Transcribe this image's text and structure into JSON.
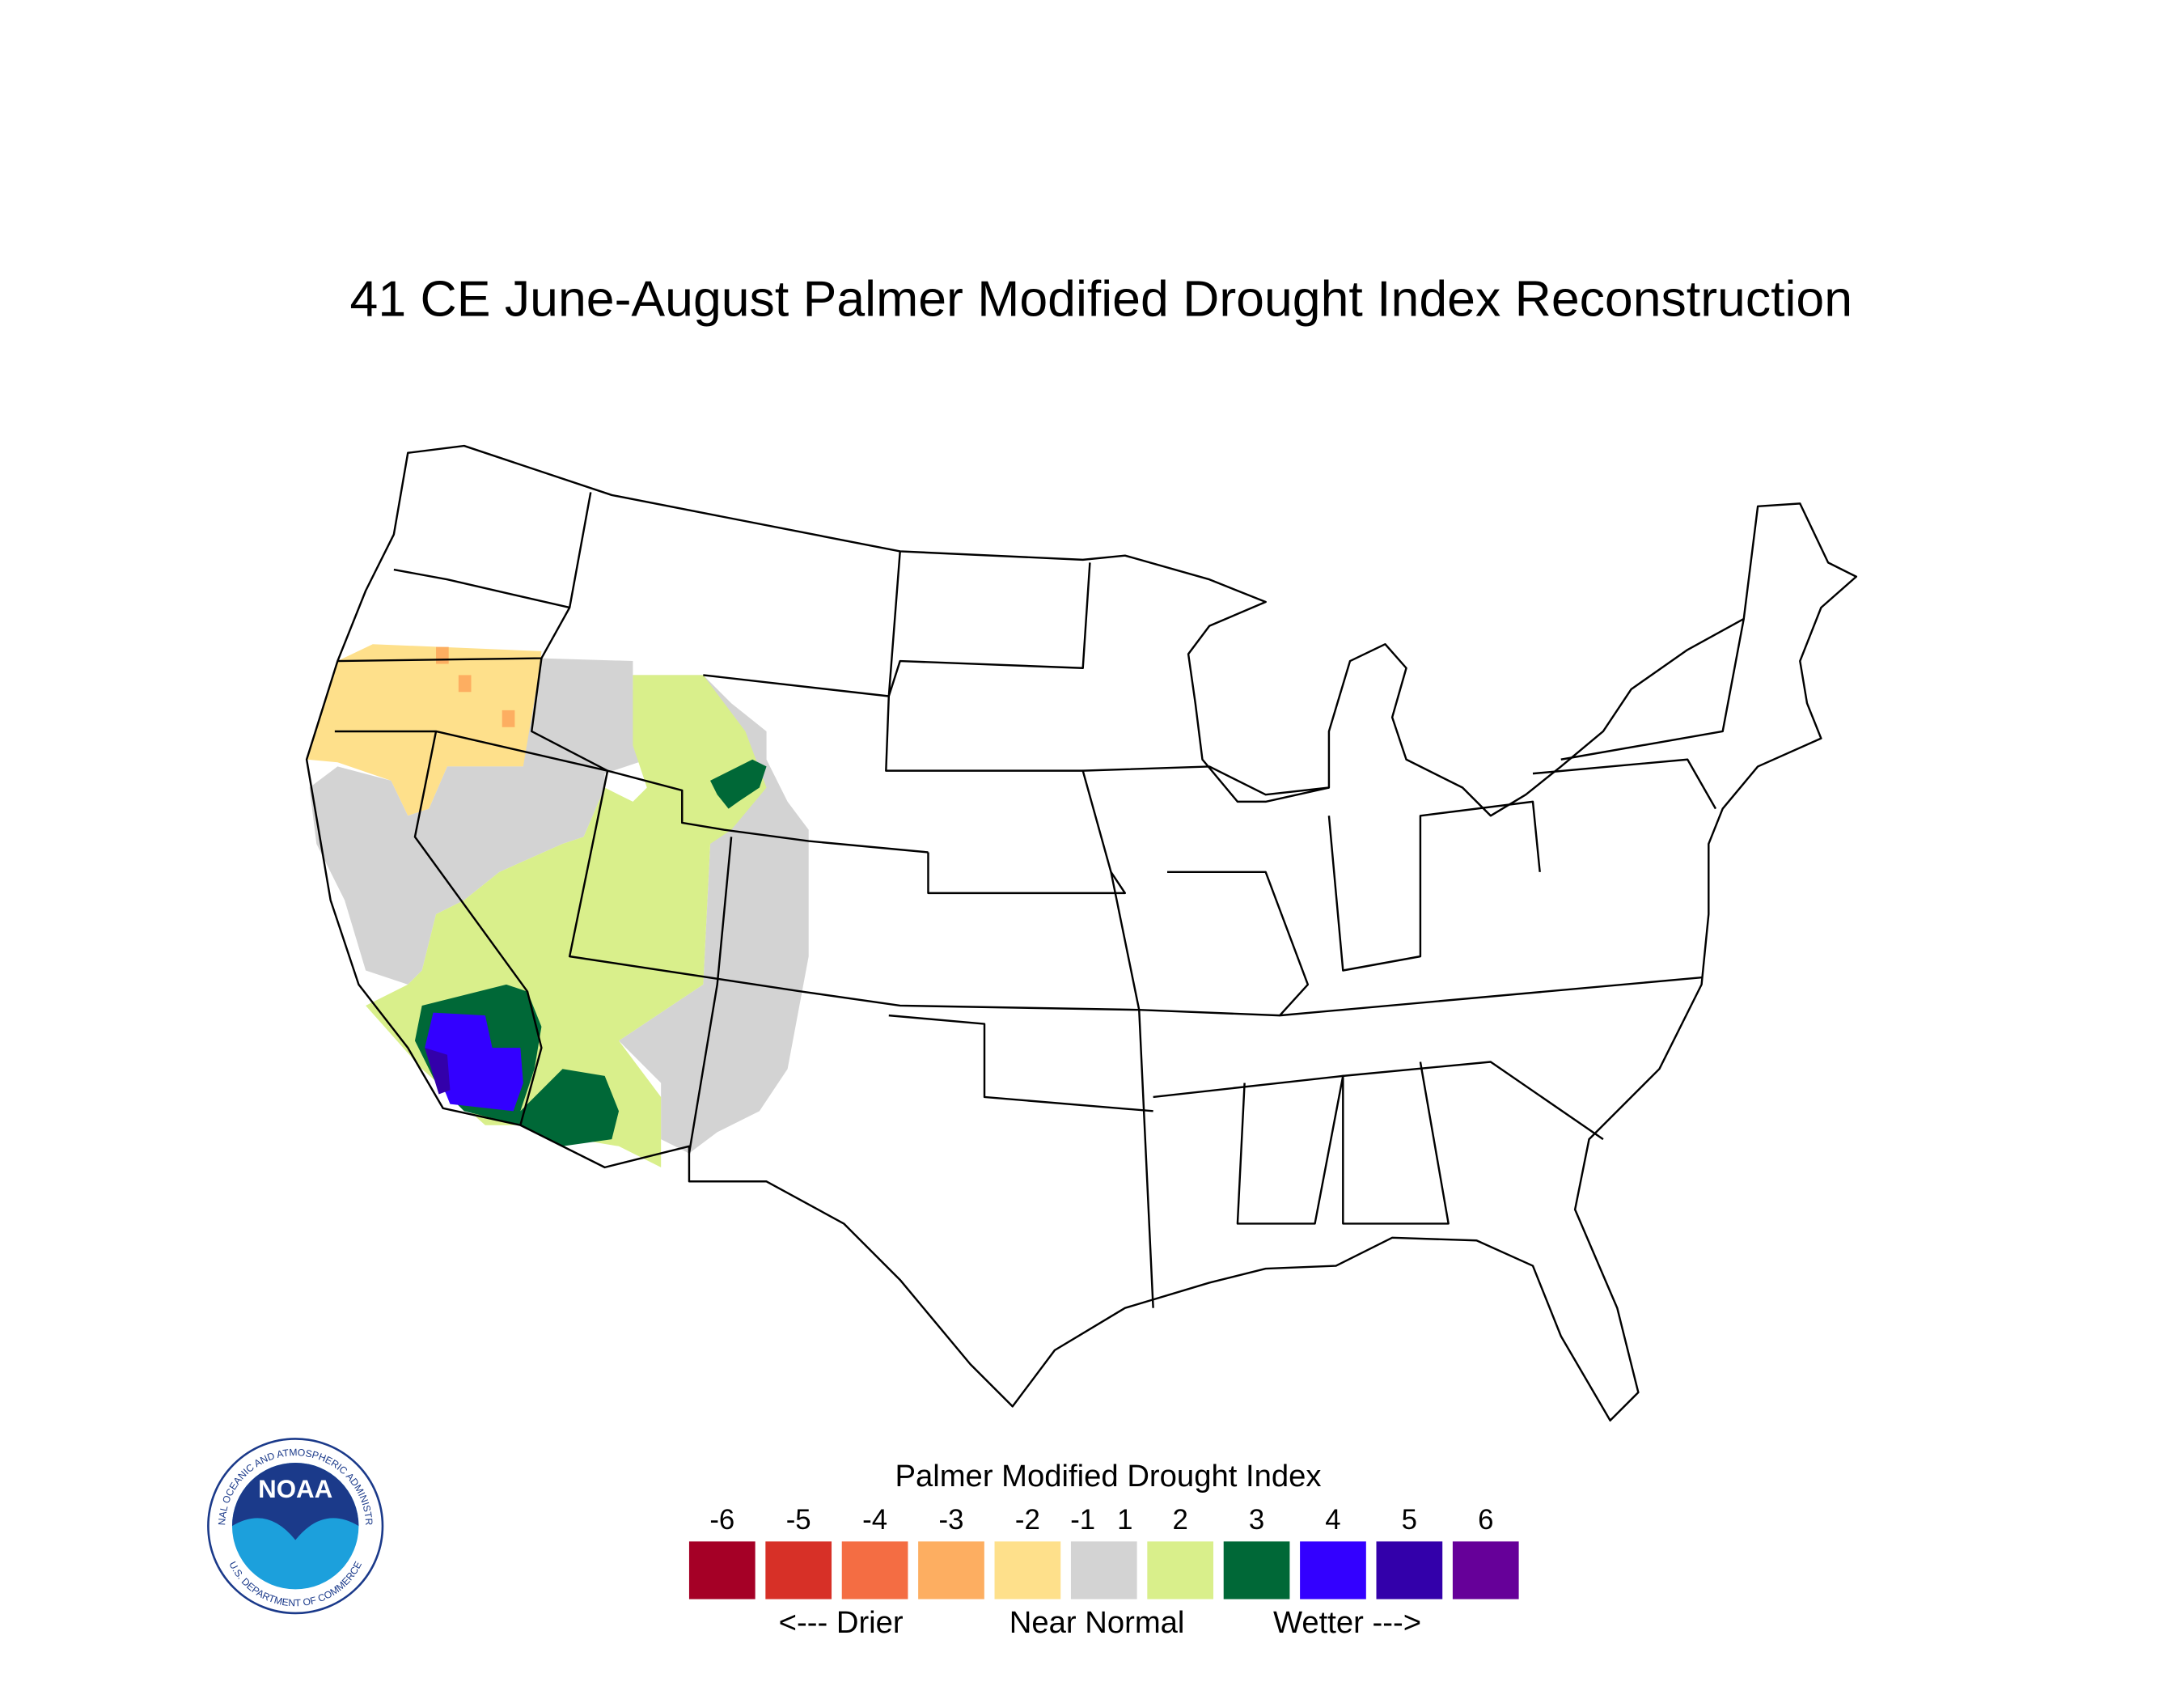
{
  "title": "41 CE  June-August  Palmer Modified Drought Index Reconstruction",
  "legend": {
    "title": "Palmer Modified Drought Index",
    "ticks": [
      -6,
      -5,
      -4,
      -3,
      -2,
      -1,
      1,
      2,
      3,
      4,
      5,
      6
    ],
    "colors": [
      "#a50026",
      "#d73027",
      "#f46d43",
      "#fdae61",
      "#fee08b",
      "#d3d3d3",
      "#d9ef8b",
      "#006837",
      "#3300ff",
      "#3300aa",
      "#660099"
    ],
    "captions": [
      "<--- Drier",
      "Near Normal",
      "Wetter --->"
    ]
  },
  "logo": {
    "name": "NOAA",
    "ring_top": "NATIONAL OCEANIC AND ATMOSPHERIC ADMINISTRATION",
    "ring_bottom": "U.S. DEPARTMENT OF COMMERCE"
  }
}
